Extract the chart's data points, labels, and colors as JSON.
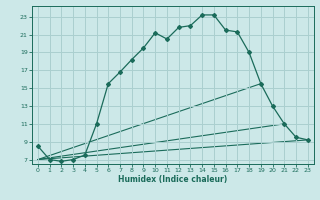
{
  "xlabel": "Humidex (Indice chaleur)",
  "bg_color": "#cce8e8",
  "grid_color": "#aacfcf",
  "line_color": "#1a6b5a",
  "xlim": [
    -0.5,
    23.5
  ],
  "ylim": [
    6.5,
    24.2
  ],
  "xticks": [
    0,
    1,
    2,
    3,
    4,
    5,
    6,
    7,
    8,
    9,
    10,
    11,
    12,
    13,
    14,
    15,
    16,
    17,
    18,
    19,
    20,
    21,
    22,
    23
  ],
  "yticks": [
    7,
    9,
    11,
    13,
    15,
    17,
    19,
    21,
    23
  ],
  "main_curve_x": [
    0,
    1,
    2,
    3,
    4,
    5,
    6,
    7,
    8,
    9,
    10,
    11,
    12,
    13,
    14,
    15,
    16,
    17,
    18,
    19,
    20,
    21,
    22,
    23
  ],
  "main_curve_y": [
    8.5,
    7.0,
    6.8,
    7.0,
    7.5,
    11.0,
    15.5,
    16.8,
    18.2,
    19.5,
    21.2,
    20.5,
    21.8,
    22.0,
    23.2,
    23.2,
    21.5,
    21.3,
    19.0,
    15.5,
    13.0,
    11.0,
    9.5,
    9.2
  ],
  "line1_x": [
    0,
    23
  ],
  "line1_y": [
    7.0,
    9.2
  ],
  "line2_x": [
    0,
    21
  ],
  "line2_y": [
    7.0,
    11.0
  ],
  "line3_x": [
    0,
    19
  ],
  "line3_y": [
    7.0,
    15.5
  ]
}
